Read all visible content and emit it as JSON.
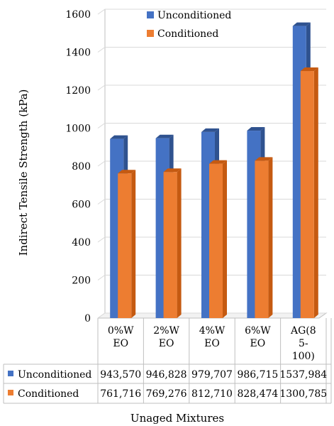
{
  "chart_data": {
    "type": "bar",
    "title": "",
    "ylabel": "Indirect Tensile Strength (kPa)",
    "xlabel": "Unaged Mixtures",
    "ylim": [
      0,
      1600
    ],
    "yticks": [
      0,
      200,
      400,
      600,
      800,
      1000,
      1200,
      1400,
      1600
    ],
    "grid": true,
    "legend_position": "top-center",
    "categories": [
      [
        "0%W",
        "EO"
      ],
      [
        "2%W",
        "EO"
      ],
      [
        "4%W",
        "EO"
      ],
      [
        "6%W",
        "EO"
      ],
      [
        "AG(8",
        "5-",
        "100)"
      ]
    ],
    "series": [
      {
        "name": "Unconditioned",
        "color": "#4472C4",
        "side_color": "#2F528F",
        "values": [
          943.57,
          946.828,
          979.707,
          986.715,
          1537.984
        ],
        "table_values": [
          "943,570",
          "946,828",
          "979,707",
          "986,715",
          "1537,984"
        ]
      },
      {
        "name": "Conditioned",
        "color": "#ED7D31",
        "side_color": "#C55A11",
        "values": [
          761.716,
          769.276,
          812.71,
          828.474,
          1300.785
        ],
        "table_values": [
          "761,716",
          "769,276",
          "812,710",
          "828,474",
          "1300,785"
        ]
      }
    ]
  }
}
